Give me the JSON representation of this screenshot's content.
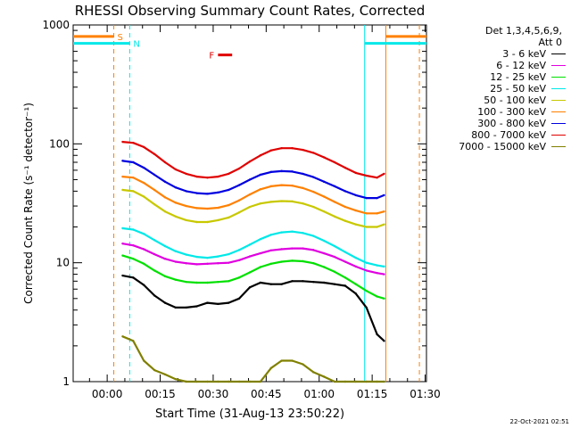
{
  "chart_data": {
    "type": "line",
    "title": "RHESSI Observing Summary Count Rates, Corrected",
    "xlabel": "Start Time (31-Aug-13 23:50:22)",
    "ylabel": "Corrected Count Rate (s⁻¹ detector⁻¹)",
    "y_scale": "log",
    "ylim": [
      1,
      1000
    ],
    "y_ticks": [
      {
        "value": 1,
        "label": "1"
      },
      {
        "value": 10,
        "label": "10"
      },
      {
        "value": 100,
        "label": "100"
      },
      {
        "value": 1000,
        "label": "1000"
      }
    ],
    "x_unit": "minutes since 23:50:22",
    "xlim": [
      0,
      100
    ],
    "x_ticks": [
      {
        "value": 9.63,
        "label": "00:00"
      },
      {
        "value": 24.63,
        "label": "00:15"
      },
      {
        "value": 39.63,
        "label": "00:30"
      },
      {
        "value": 54.63,
        "label": "00:45"
      },
      {
        "value": 69.63,
        "label": "01:00"
      },
      {
        "value": 84.63,
        "label": "01:15"
      },
      {
        "value": 99.63,
        "label": "01:30"
      }
    ],
    "legend_header": [
      "Det 1,3,4,5,6,9,",
      "Att 0"
    ],
    "legend_position": "right",
    "series": [
      {
        "name": "3 - 6 keV",
        "color": "#000000",
        "x": [
          14,
          17,
          20,
          23,
          26,
          29,
          32,
          35,
          38,
          41,
          44,
          47,
          50,
          53,
          56,
          59,
          62,
          65,
          68,
          71,
          74,
          77,
          80,
          83,
          86,
          88
        ],
        "y": [
          7.8,
          7.5,
          6.5,
          5.3,
          4.6,
          4.2,
          4.2,
          4.3,
          4.6,
          4.5,
          4.6,
          5.0,
          6.2,
          6.8,
          6.6,
          6.6,
          7.0,
          7.0,
          6.9,
          6.8,
          6.6,
          6.4,
          5.5,
          4.2,
          2.5,
          2.2
        ]
      },
      {
        "name": "6 - 12 keV",
        "color": "#e000e0",
        "x": [
          14,
          17,
          20,
          23,
          26,
          29,
          32,
          35,
          38,
          41,
          44,
          47,
          50,
          53,
          56,
          59,
          62,
          65,
          68,
          71,
          74,
          77,
          80,
          83,
          86,
          88
        ],
        "y": [
          14.5,
          14.0,
          13.0,
          11.8,
          10.8,
          10.2,
          9.9,
          9.7,
          9.8,
          9.9,
          10.0,
          10.5,
          11.3,
          12.0,
          12.7,
          13.0,
          13.2,
          13.2,
          12.8,
          12.0,
          11.2,
          10.2,
          9.3,
          8.6,
          8.2,
          8.0
        ]
      },
      {
        "name": "12 - 25 keV",
        "color": "#00e000",
        "x": [
          14,
          17,
          20,
          23,
          26,
          29,
          32,
          35,
          38,
          41,
          44,
          47,
          50,
          53,
          56,
          59,
          62,
          65,
          68,
          71,
          74,
          77,
          80,
          83,
          86,
          88
        ],
        "y": [
          11.5,
          10.8,
          9.8,
          8.6,
          7.7,
          7.2,
          6.9,
          6.8,
          6.8,
          6.9,
          7.0,
          7.5,
          8.3,
          9.2,
          9.8,
          10.2,
          10.4,
          10.3,
          9.9,
          9.2,
          8.4,
          7.5,
          6.6,
          5.8,
          5.2,
          5.0
        ]
      },
      {
        "name": "25 - 50 keV",
        "color": "#00e8e8",
        "x": [
          14,
          17,
          20,
          23,
          26,
          29,
          32,
          35,
          38,
          41,
          44,
          47,
          50,
          53,
          56,
          59,
          62,
          65,
          68,
          71,
          74,
          77,
          80,
          83,
          86,
          88
        ],
        "y": [
          19.5,
          19.0,
          17.5,
          15.5,
          13.8,
          12.5,
          11.7,
          11.2,
          11.0,
          11.3,
          11.8,
          12.8,
          14.2,
          15.8,
          17.2,
          18.0,
          18.3,
          17.8,
          16.8,
          15.3,
          13.8,
          12.3,
          11.0,
          10.0,
          9.5,
          9.3
        ]
      },
      {
        "name": "50 - 100 keV",
        "color": "#c8c800",
        "x": [
          14,
          17,
          20,
          23,
          26,
          29,
          32,
          35,
          38,
          41,
          44,
          47,
          50,
          53,
          56,
          59,
          62,
          65,
          68,
          71,
          74,
          77,
          80,
          83,
          86,
          88
        ],
        "y": [
          41,
          40,
          36,
          31,
          27,
          24.5,
          22.8,
          22,
          22,
          22.8,
          24,
          26.5,
          29.5,
          31.5,
          32.5,
          33,
          32.8,
          31.5,
          29.5,
          27,
          24.5,
          22.5,
          21,
          20,
          20,
          21
        ]
      },
      {
        "name": "100 - 300 keV",
        "color": "#ff8000",
        "x": [
          14,
          17,
          20,
          23,
          26,
          29,
          32,
          35,
          38,
          41,
          44,
          47,
          50,
          53,
          56,
          59,
          62,
          65,
          68,
          71,
          74,
          77,
          80,
          83,
          86,
          88
        ],
        "y": [
          53,
          52,
          47,
          41,
          35.5,
          32,
          30,
          28.8,
          28.5,
          29,
          30.5,
          33.5,
          37.5,
          41.5,
          44,
          45,
          44.5,
          42.5,
          39.5,
          36,
          32.5,
          29.5,
          27.5,
          26,
          26,
          27
        ]
      },
      {
        "name": "300 - 800 keV",
        "color": "#0000e0",
        "x": [
          14,
          17,
          20,
          23,
          26,
          29,
          32,
          35,
          38,
          41,
          44,
          47,
          50,
          53,
          56,
          59,
          62,
          65,
          68,
          71,
          74,
          77,
          80,
          83,
          86,
          88
        ],
        "y": [
          72,
          70,
          63,
          55,
          48,
          43,
          40,
          38.5,
          38,
          39,
          41,
          45,
          50,
          55,
          58,
          59,
          58.5,
          56,
          52.5,
          48,
          44,
          40,
          37,
          35,
          35,
          37
        ]
      },
      {
        "name": "800 - 7000 keV",
        "color": "#e00000",
        "x": [
          14,
          17,
          20,
          23,
          26,
          29,
          32,
          35,
          38,
          41,
          44,
          47,
          50,
          53,
          56,
          59,
          62,
          65,
          68,
          71,
          74,
          77,
          80,
          83,
          86,
          88
        ],
        "y": [
          104,
          102,
          94,
          82,
          70,
          61,
          56,
          53,
          52,
          53,
          56,
          62,
          71,
          80,
          88,
          92,
          92,
          89,
          84,
          77,
          70,
          63,
          57,
          54,
          52,
          56
        ]
      },
      {
        "name": "7000 - 15000 keV",
        "color": "#808000",
        "x": [
          14,
          17,
          20,
          23,
          26,
          29,
          32,
          35,
          38,
          41,
          44,
          47,
          50,
          53,
          56,
          59,
          62,
          65,
          68,
          71,
          74,
          77,
          80,
          83,
          86,
          88
        ],
        "y": [
          2.4,
          2.2,
          1.5,
          1.25,
          1.15,
          1.05,
          1.0,
          1.0,
          1.0,
          1.0,
          1.0,
          1.0,
          1.0,
          1.0,
          1.3,
          1.5,
          1.5,
          1.4,
          1.2,
          1.1,
          1.0,
          1.0,
          1.0,
          1.0,
          1.0,
          1.0
        ]
      }
    ],
    "flag_intervals": [
      {
        "label": "S",
        "color": "#ff8000",
        "y": 800,
        "segments": [
          [
            0,
            11.5
          ],
          [
            88.5,
            100
          ]
        ]
      },
      {
        "label": "N",
        "color": "#00e8e8",
        "y": 700,
        "segments": [
          [
            0,
            16
          ],
          [
            82.5,
            100
          ]
        ]
      },
      {
        "label": "F",
        "color": "#e00000",
        "y": 560,
        "segments": [
          [
            41,
            45
          ]
        ]
      }
    ],
    "boundary_lines": [
      {
        "color": "#ff8000",
        "style": "dashed",
        "x": 11.5
      },
      {
        "color": "#00e8e8",
        "style": "dashed",
        "x": 16
      },
      {
        "color": "#00e8e8",
        "style": "solid",
        "x": 82.5
      },
      {
        "color": "#ff8000",
        "style": "solid",
        "x": 88.5
      },
      {
        "color": "#ff8000",
        "style": "dashed",
        "x": 98
      }
    ]
  },
  "footer": {
    "date": "22-Oct-2021 02:51"
  }
}
